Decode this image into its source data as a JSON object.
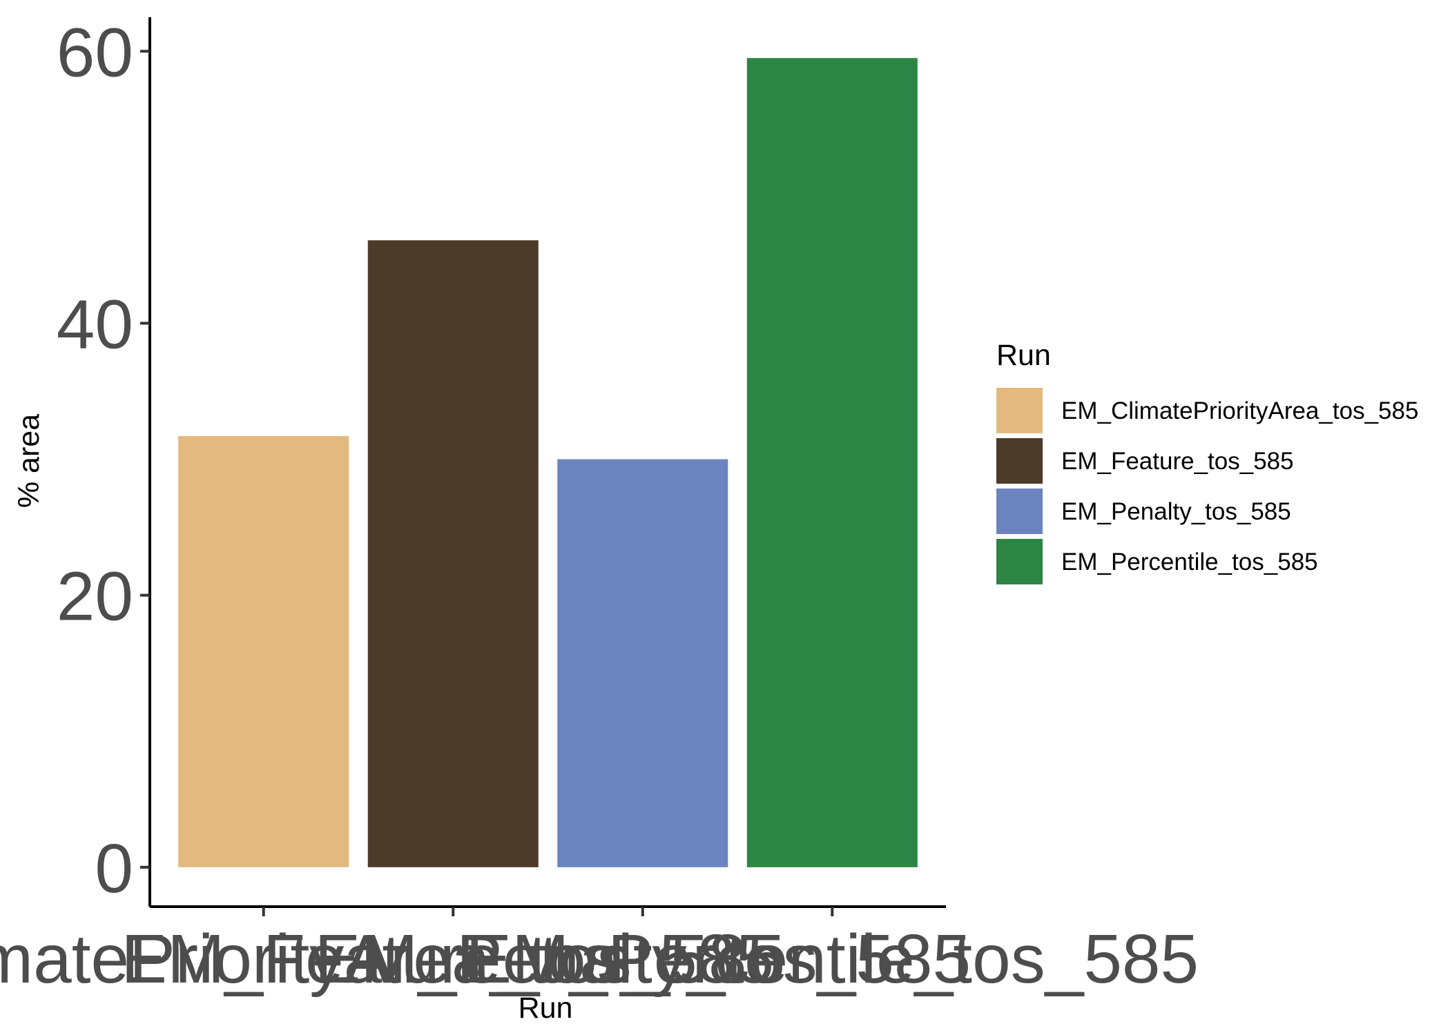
{
  "chart_data": {
    "type": "bar",
    "categories": [
      "EM_ClimatePriorityArea_tos_585",
      "EM_Feature_tos_585",
      "EM_Penalty_tos_585",
      "EM_Percentile_tos_585"
    ],
    "values": [
      31.7,
      46.1,
      30.0,
      59.5
    ],
    "colors": [
      "#E4B97F",
      "#4C3B2A",
      "#6B84BF",
      "#2C8445"
    ],
    "xlabel": "Run",
    "ylabel": "% area",
    "ylim": [
      -2.9,
      62.5
    ],
    "yticks": [
      0,
      20,
      40,
      60
    ],
    "ytick_labels": [
      "0",
      "20",
      "40",
      "60"
    ],
    "grid": false,
    "legend": {
      "title": "Run",
      "position": "right",
      "entries": [
        "EM_ClimatePriorityArea_tos_585",
        "EM_Feature_tos_585",
        "EM_Penalty_tos_585",
        "EM_Percentile_tos_585"
      ]
    }
  }
}
